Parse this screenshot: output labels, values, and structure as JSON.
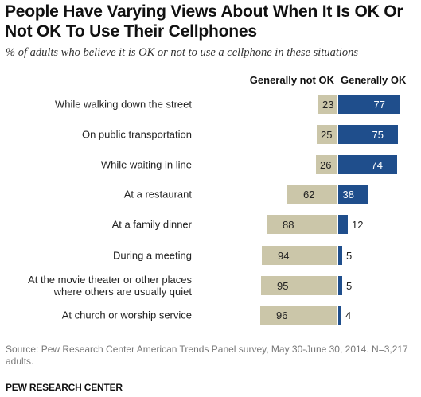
{
  "title": "People Have Varying Views About When It Is OK Or Not OK To Use Their Cellphones",
  "subtitle": "% of adults who believe it is OK or not to use a cellphone in these situations",
  "source": "Source: Pew Research Center American Trends Panel survey, May 30-June 30, 2014. N=3,217 adults.",
  "org": "PEW RESEARCH CENTER",
  "colors": {
    "not_ok": "#cbc6a9",
    "ok": "#1f4e8c"
  },
  "chart_data": {
    "type": "bar",
    "orientation": "horizontal-diverging",
    "categories": [
      [
        "While walking down the street"
      ],
      [
        "On public transportation"
      ],
      [
        "While waiting in line"
      ],
      [
        "At a restaurant"
      ],
      [
        "At a family dinner"
      ],
      [
        "During a meeting"
      ],
      [
        "At the movie theater or other places",
        "where others are usually quiet"
      ],
      [
        "At church or worship service"
      ]
    ],
    "series": [
      {
        "name": "Generally not OK",
        "values": [
          23,
          25,
          26,
          62,
          88,
          94,
          95,
          96
        ]
      },
      {
        "name": "Generally OK",
        "values": [
          77,
          75,
          74,
          38,
          12,
          5,
          5,
          4
        ]
      }
    ]
  }
}
